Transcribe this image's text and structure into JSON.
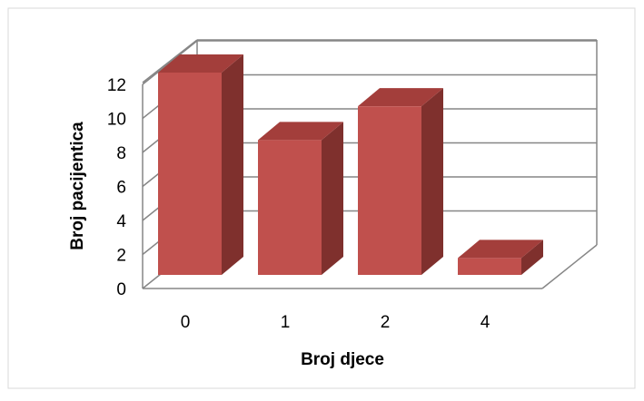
{
  "chart_data": {
    "type": "bar",
    "categories": [
      "0",
      "1",
      "2",
      "4"
    ],
    "values": [
      12,
      8,
      10,
      1
    ],
    "xlabel": "Broj djece",
    "ylabel": "Broj pacijentica",
    "ylim": [
      0,
      12
    ],
    "yticks": [
      "0",
      "2",
      "4",
      "6",
      "8",
      "10",
      "12"
    ],
    "grid": true,
    "style": "3d-bar",
    "colors": {
      "bar_front": "#C0504D",
      "bar_top": "#A33E3B",
      "bar_side": "#7F302D",
      "grid": "#868686",
      "border": "#D9D9D9"
    }
  }
}
